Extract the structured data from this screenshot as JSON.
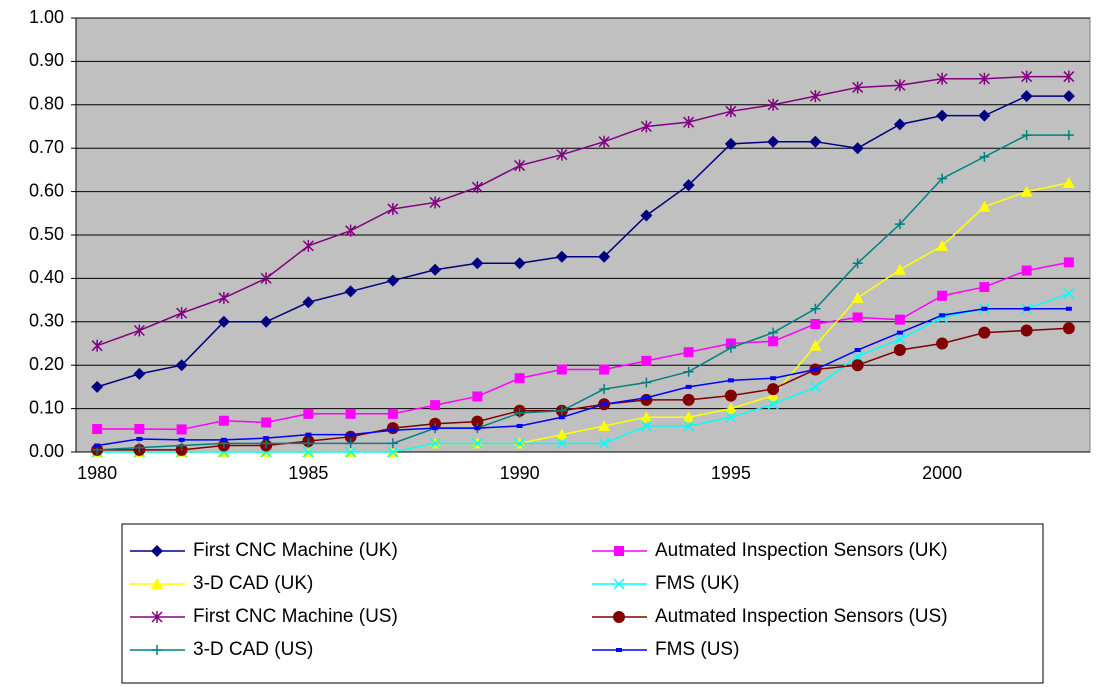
{
  "chart_data": {
    "type": "line",
    "x": [
      1980,
      1981,
      1982,
      1983,
      1984,
      1985,
      1986,
      1987,
      1988,
      1989,
      1990,
      1991,
      1992,
      1993,
      1994,
      1995,
      1996,
      1997,
      1998,
      1999,
      2000,
      2001,
      2002,
      2003
    ],
    "xlim": [
      1979.5,
      2003.5
    ],
    "xticks": [
      1980,
      1985,
      1990,
      1995,
      2000
    ],
    "ylim": [
      0,
      1
    ],
    "yticks": [
      {
        "value": 0,
        "label": "0.00"
      },
      {
        "value": 0.1,
        "label": "0.10"
      },
      {
        "value": 0.2,
        "label": "0.20"
      },
      {
        "value": 0.3,
        "label": "0.30"
      },
      {
        "value": 0.4,
        "label": "0.40"
      },
      {
        "value": 0.5,
        "label": "0.50"
      },
      {
        "value": 0.6,
        "label": "0.60"
      },
      {
        "value": 0.7,
        "label": "0.70"
      },
      {
        "value": 0.8,
        "label": "0.80"
      },
      {
        "value": 0.9,
        "label": "0.90"
      },
      {
        "value": 1,
        "label": "1.00"
      }
    ],
    "grid": true,
    "series": [
      {
        "name": "First CNC Machine (UK)",
        "color": "#000080",
        "marker": "diamond",
        "values": [
          0.15,
          0.18,
          0.2,
          0.3,
          0.3,
          0.345,
          0.37,
          0.395,
          0.42,
          0.435,
          0.435,
          0.45,
          0.45,
          0.545,
          0.615,
          0.71,
          0.715,
          0.715,
          0.7,
          0.755,
          0.775,
          0.775,
          0.82,
          0.82
        ]
      },
      {
        "name": "Autmated Inspection Sensors (UK)",
        "color": "#ff00ff",
        "marker": "square",
        "values": [
          0.053,
          0.053,
          0.052,
          0.072,
          0.068,
          0.088,
          0.088,
          0.088,
          0.108,
          0.128,
          0.17,
          0.19,
          0.19,
          0.21,
          0.23,
          0.25,
          0.255,
          0.295,
          0.31,
          0.305,
          0.36,
          0.38,
          0.418,
          0.437
        ]
      },
      {
        "name": "3-D CAD (UK)",
        "color": "#ffff00",
        "marker": "triangle",
        "values": [
          0,
          0,
          0,
          0,
          0,
          0,
          0,
          0,
          0.02,
          0.02,
          0.02,
          0.04,
          0.06,
          0.08,
          0.08,
          0.1,
          0.13,
          0.245,
          0.355,
          0.42,
          0.475,
          0.565,
          0.6,
          0.62
        ]
      },
      {
        "name": "FMS (UK)",
        "color": "#00ffff",
        "marker": "x",
        "values": [
          0,
          0,
          0,
          0,
          0,
          0,
          0,
          0,
          0.02,
          0.02,
          0.02,
          0.02,
          0.02,
          0.06,
          0.06,
          0.08,
          0.11,
          0.15,
          0.22,
          0.26,
          0.31,
          0.33,
          0.33,
          0.365
        ]
      },
      {
        "name": "First CNC Machine (US)",
        "color": "#800080",
        "marker": "star",
        "values": [
          0.245,
          0.28,
          0.32,
          0.355,
          0.4,
          0.475,
          0.51,
          0.56,
          0.575,
          0.61,
          0.66,
          0.685,
          0.715,
          0.75,
          0.76,
          0.785,
          0.8,
          0.82,
          0.84,
          0.845,
          0.86,
          0.86,
          0.865,
          0.865
        ]
      },
      {
        "name": "Autmated Inspection Sensors (US)",
        "color": "#800000",
        "marker": "circle",
        "values": [
          0.005,
          0.005,
          0.005,
          0.015,
          0.015,
          0.025,
          0.035,
          0.055,
          0.065,
          0.07,
          0.095,
          0.095,
          0.11,
          0.12,
          0.12,
          0.13,
          0.145,
          0.19,
          0.2,
          0.235,
          0.25,
          0.275,
          0.28,
          0.285
        ]
      },
      {
        "name": "3-D CAD (US)",
        "color": "#008080",
        "marker": "plus",
        "values": [
          0.005,
          0.01,
          0.015,
          0.02,
          0.02,
          0.02,
          0.02,
          0.02,
          0.055,
          0.055,
          0.09,
          0.095,
          0.145,
          0.16,
          0.185,
          0.24,
          0.275,
          0.33,
          0.435,
          0.525,
          0.63,
          0.68,
          0.73,
          0.73
        ]
      },
      {
        "name": "FMS (US)",
        "color": "#0000ff",
        "marker": "dash",
        "values": [
          0.015,
          0.03,
          0.028,
          0.028,
          0.032,
          0.04,
          0.04,
          0.05,
          0.055,
          0.055,
          0.06,
          0.08,
          0.11,
          0.125,
          0.15,
          0.165,
          0.17,
          0.19,
          0.235,
          0.275,
          0.315,
          0.33,
          0.33,
          0.33
        ]
      }
    ]
  }
}
